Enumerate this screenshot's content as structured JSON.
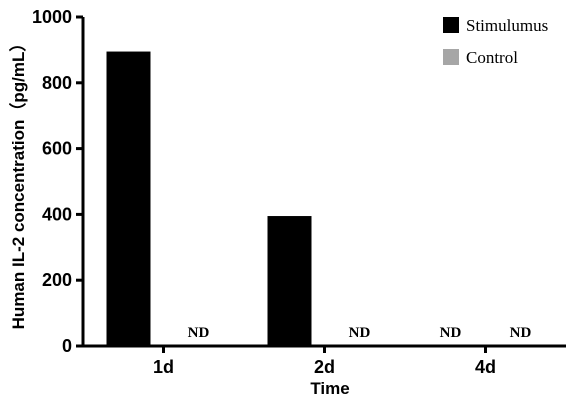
{
  "chart_data": {
    "type": "bar",
    "categories": [
      "1d",
      "2d",
      "4d"
    ],
    "series": [
      {
        "name": "Stimulumus",
        "values": [
          895,
          395,
          0
        ],
        "nd": [
          false,
          false,
          true
        ],
        "color": "#000000"
      },
      {
        "name": "Control",
        "values": [
          0,
          0,
          0
        ],
        "nd": [
          true,
          true,
          true
        ],
        "color": "#a6a6a6"
      }
    ],
    "nd_label": "ND",
    "xlabel": "Time",
    "ylabel": "Human IL-2 concentration（pg/mL）",
    "ylim": [
      0,
      1000
    ],
    "yticks": [
      0,
      200,
      400,
      600,
      800,
      1000
    ],
    "grid": false,
    "legend_position": "top-right"
  }
}
